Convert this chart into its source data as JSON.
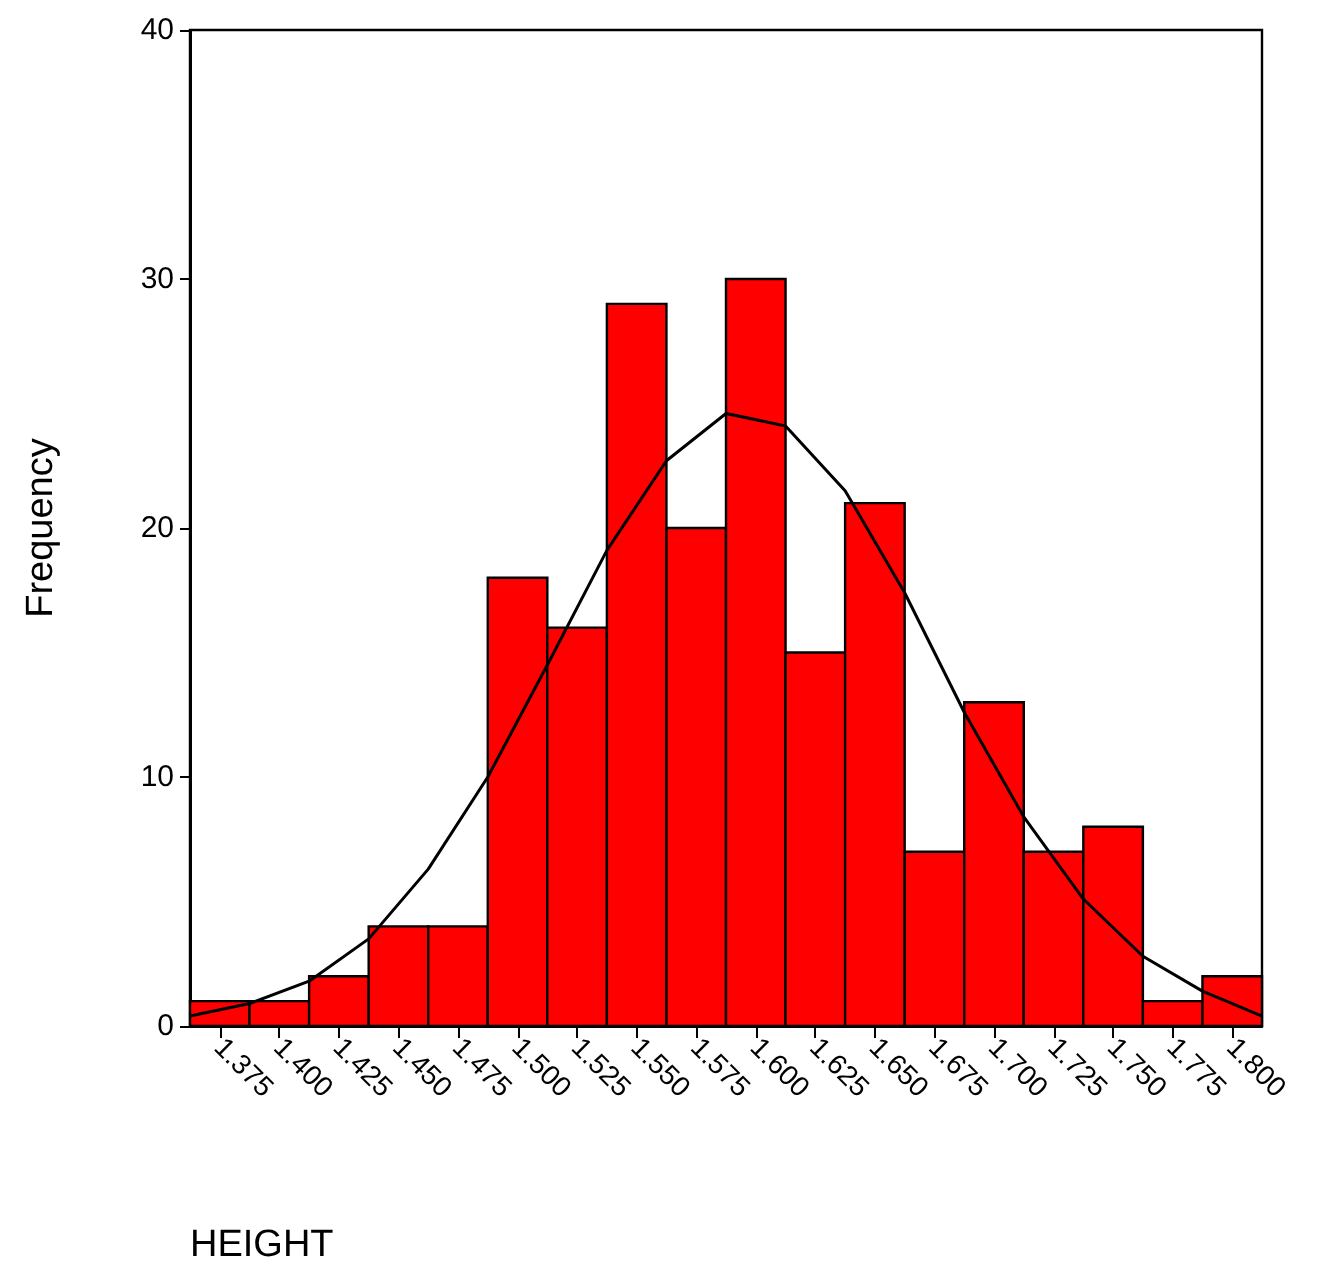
{
  "chart_data": {
    "type": "histogram",
    "xlabel": "HEIGHT",
    "ylabel": "Frequency",
    "bins": [
      1.3625,
      1.3875,
      1.4125,
      1.4375,
      1.4625,
      1.4875,
      1.5125,
      1.5375,
      1.5625,
      1.5875,
      1.6125,
      1.6375,
      1.6625,
      1.6875,
      1.7125,
      1.7375,
      1.7625,
      1.7875,
      1.8125
    ],
    "series": [
      {
        "color": "#ff0000",
        "values": [
          1,
          1,
          2,
          4,
          4,
          18,
          16,
          29,
          20,
          30,
          15,
          21,
          7,
          13,
          7,
          8,
          1,
          2
        ]
      },
      {
        "type": "line",
        "color": "#000000",
        "x": [
          1.3625,
          1.3875,
          1.4125,
          1.4375,
          1.4625,
          1.4875,
          1.5125,
          1.5375,
          1.5625,
          1.5875,
          1.6125,
          1.6375,
          1.6625,
          1.6875,
          1.7125,
          1.7375,
          1.7625,
          1.7875,
          1.8125
        ],
        "values": [
          0.4,
          0.9,
          1.8,
          3.5,
          6.3,
          10,
          14.5,
          19.1,
          22.7,
          24.6,
          24.1,
          21.5,
          17.4,
          12.6,
          8.4,
          5.1,
          2.8,
          1.4,
          0.4
        ]
      }
    ],
    "marker": "none",
    "grid": false,
    "xlim": [
      1.3625,
      1.8125
    ],
    "xticks": [
      {
        "value": 1.375,
        "label": "1.375"
      },
      {
        "value": 1.4,
        "label": "1.400"
      },
      {
        "value": 1.425,
        "label": "1.425"
      },
      {
        "value": 1.45,
        "label": "1.450"
      },
      {
        "value": 1.475,
        "label": "1.475"
      },
      {
        "value": 1.5,
        "label": "1.500"
      },
      {
        "value": 1.525,
        "label": "1.525"
      },
      {
        "value": 1.55,
        "label": "1.550"
      },
      {
        "value": 1.575,
        "label": "1.575"
      },
      {
        "value": 1.6,
        "label": "1.600"
      },
      {
        "value": 1.625,
        "label": "1.625"
      },
      {
        "value": 1.65,
        "label": "1.650"
      },
      {
        "value": 1.675,
        "label": "1.675"
      },
      {
        "value": 1.7,
        "label": "1.700"
      },
      {
        "value": 1.725,
        "label": "1.725"
      },
      {
        "value": 1.75,
        "label": "1.750"
      },
      {
        "value": 1.775,
        "label": "1.775"
      },
      {
        "value": 1.8,
        "label": "1.800"
      }
    ],
    "ylim": [
      0,
      40
    ],
    "yticks": [
      0,
      10,
      20,
      30,
      40
    ]
  }
}
